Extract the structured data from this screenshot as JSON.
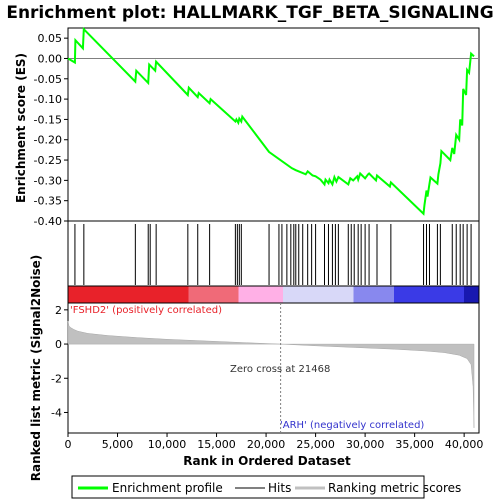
{
  "chart_data": [
    {
      "type": "line",
      "title": "Enrichment plot: HALLMARK_TGF_BETA_SIGNALING",
      "ylabel": "Enrichment score (ES)",
      "ylim": [
        -0.4,
        0.075
      ],
      "yticks": [
        0.05,
        0.0,
        -0.05,
        -0.1,
        -0.15,
        -0.2,
        -0.25,
        -0.3,
        -0.35,
        -0.4
      ],
      "ytick_labels": [
        "0.05",
        "0.00",
        "-0.05",
        "-0.10",
        "-0.15",
        "-0.20",
        "-0.25",
        "-0.30",
        "-0.35",
        "-0.40"
      ],
      "xlim": [
        0,
        41500
      ],
      "series": [
        {
          "name": "Enrichment profile",
          "color": "#00ff00",
          "x": [
            0,
            700,
            750,
            1500,
            1600,
            6800,
            6900,
            8100,
            8200,
            8800,
            8900,
            12100,
            12200,
            13100,
            13200,
            14300,
            14400,
            16900,
            17000,
            17200,
            17300,
            17500,
            17600,
            20300,
            22600,
            23000,
            23500,
            24000,
            24200,
            24700,
            25000,
            25500,
            25900,
            26000,
            26300,
            26400,
            26700,
            26900,
            27100,
            27300,
            28300,
            28500,
            28800,
            29200,
            29300,
            29500,
            30000,
            30300,
            30400,
            31100,
            31200,
            32500,
            32600,
            35900,
            36000,
            36200,
            36300,
            36500,
            36600,
            37300,
            37400,
            37600,
            37700,
            38600,
            38800,
            39000,
            39200,
            39500,
            39600,
            39800,
            39900,
            40200,
            40300,
            40500,
            40700,
            41000
          ],
          "y": [
            0.0,
            -0.01,
            0.045,
            0.025,
            0.072,
            -0.057,
            -0.03,
            -0.06,
            -0.015,
            -0.03,
            -0.008,
            -0.09,
            -0.072,
            -0.095,
            -0.085,
            -0.11,
            -0.1,
            -0.155,
            -0.15,
            -0.158,
            -0.148,
            -0.155,
            -0.143,
            -0.23,
            -0.27,
            -0.275,
            -0.28,
            -0.285,
            -0.278,
            -0.288,
            -0.29,
            -0.298,
            -0.31,
            -0.298,
            -0.307,
            -0.298,
            -0.31,
            -0.292,
            -0.303,
            -0.292,
            -0.31,
            -0.295,
            -0.3,
            -0.29,
            -0.298,
            -0.283,
            -0.295,
            -0.285,
            -0.283,
            -0.3,
            -0.288,
            -0.315,
            -0.305,
            -0.382,
            -0.36,
            -0.325,
            -0.34,
            -0.308,
            -0.293,
            -0.308,
            -0.285,
            -0.258,
            -0.228,
            -0.25,
            -0.22,
            -0.235,
            -0.188,
            -0.2,
            -0.15,
            -0.165,
            -0.075,
            -0.09,
            -0.028,
            -0.035,
            0.012,
            0.005
          ]
        }
      ]
    },
    {
      "type": "scatter",
      "title": "",
      "series": [
        {
          "name": "Hits",
          "x": [
            700,
            1600,
            6800,
            8100,
            8300,
            8900,
            12100,
            13100,
            14300,
            16900,
            17100,
            17300,
            17500,
            20300,
            21300,
            21600,
            22100,
            22500,
            22800,
            23000,
            23300,
            23700,
            24200,
            24600,
            25000,
            25900,
            26300,
            26700,
            27000,
            27300,
            28300,
            28600,
            28900,
            29300,
            29600,
            30000,
            30400,
            31200,
            32600,
            35900,
            36200,
            36500,
            37300,
            37600,
            38800,
            39200,
            39600,
            39900,
            40300,
            40700
          ]
        }
      ]
    },
    {
      "type": "heatmap",
      "title": "",
      "colors": [
        "#e8222a",
        "#f06a78",
        "#ffb0e6",
        "#d8d8f8",
        "#8888ee",
        "#3a3ae6",
        "#1818b0"
      ],
      "stops": [
        0,
        12000,
        17000,
        21468,
        28500,
        32500,
        39500,
        41000
      ]
    },
    {
      "type": "area",
      "title": "",
      "ylabel": "Ranked list metric (Signal2Noise)",
      "xlabel": "Rank in Ordered Dataset",
      "ylim": [
        -5.2,
        2.4
      ],
      "yticks": [
        2,
        0,
        -2,
        -4
      ],
      "ytick_labels": [
        "2",
        "0",
        "-2",
        "-4"
      ],
      "xticks": [
        0,
        5000,
        10000,
        15000,
        20000,
        25000,
        30000,
        35000,
        40000
      ],
      "xtick_labels": [
        "0",
        "5,000",
        "10,000",
        "15,000",
        "20,000",
        "25,000",
        "30,000",
        "35,000",
        "40,000"
      ],
      "xlim": [
        0,
        41500
      ],
      "series": [
        {
          "name": "Ranking metric scores",
          "color": "#c0c0c0",
          "x": [
            0,
            100,
            300,
            600,
            1000,
            2000,
            4000,
            7000,
            10000,
            14000,
            18000,
            21468,
            25000,
            29000,
            33000,
            36000,
            38000,
            39500,
            40300,
            40700,
            40900,
            41000
          ],
          "y": [
            1.35,
            1.05,
            0.95,
            0.85,
            0.75,
            0.62,
            0.5,
            0.38,
            0.28,
            0.18,
            0.08,
            0.0,
            -0.1,
            -0.2,
            -0.3,
            -0.4,
            -0.5,
            -0.65,
            -0.85,
            -1.2,
            -2.5,
            -4.9
          ]
        }
      ],
      "annotations": [
        "'FSHD2' (positively correlated)",
        "Zero cross at 21468",
        "'ARH' (negatively correlated)"
      ]
    }
  ],
  "legend": {
    "items": [
      {
        "label": "Enrichment profile",
        "color": "#00ff00"
      },
      {
        "label": "Hits",
        "color": "#000000"
      },
      {
        "label": "Ranking metric scores",
        "color": "#c0c0c0"
      }
    ]
  }
}
